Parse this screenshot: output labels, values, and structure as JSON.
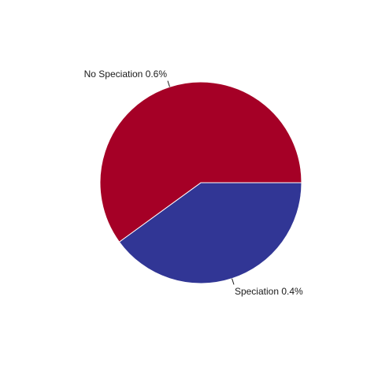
{
  "chart_data": {
    "type": "pie",
    "slices": [
      {
        "label": "Speciation 0.4%",
        "value": 0.4,
        "color": "#313695"
      },
      {
        "label": "No Speciation 0.6%",
        "value": 0.6,
        "color": "#A50026"
      }
    ],
    "slice_border_color": "#ffffff",
    "legend": "none",
    "grid": false
  }
}
